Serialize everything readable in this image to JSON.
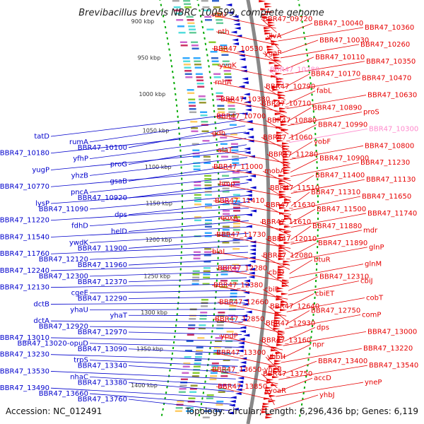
{
  "title": "Brevibacillus brevis NBRC 100599, complete genome",
  "footer": {
    "accession": "Accession: NC_012491",
    "summary": "Topology: circular; Length: 6,296,436 bp; Genes: 6,119"
  },
  "colors": {
    "forward": "#e60000",
    "reverse": "#0000cc",
    "highlight": "#ff88cc",
    "backbone": "#888888",
    "grid": "#00aa00"
  },
  "kbp_ticks": [
    "900 kbp",
    "950 kbp",
    "1000 kbp",
    "1050 kbp",
    "1100 kbp",
    "1150 kbp",
    "1200 kbp",
    "1250 kbp",
    "1300 kbp",
    "1350 kbp",
    "1400 kbp"
  ],
  "left_labels": [
    "tatD",
    "rumA",
    "BBR47_10100",
    "BBR47_10180",
    "yfhP",
    "proG",
    "yugP",
    "yhzB",
    "gsaB",
    "BBR47_10770",
    "pncA",
    "BBR47_10920",
    "lysP",
    "BBR47_11090",
    "dps",
    "BBR47_11220",
    "fdhD",
    "helD",
    "BBR47_11540",
    "ywdK",
    "BBR47_11900",
    "BBR47_11760",
    "BBR47_12120",
    "BBR47_11960",
    "BBR47_12240",
    "BBR47_12300",
    "BBR47_12370",
    "BBR47_12130",
    "cgeE",
    "BBR47_12290",
    "dctB",
    "yhaU",
    "yhaT",
    "dctA",
    "BBR47_12920",
    "BBR47_12970",
    "BBR47_13010",
    "BBR47_13020-opuD",
    "BBR47_13090",
    "BBR47_13230",
    "trpS",
    "BBR47_13340",
    "BBR47_13530",
    "nhaC",
    "BBR47_13380",
    "BBR47_13490",
    "BBR47_13660",
    "BBR47_13760"
  ],
  "right_labels": [
    "ribU",
    "BBR47_09720",
    "BBR47_10040",
    "BBR47_10360",
    "nth",
    "ilvA",
    "BBR47_10030",
    "BBR47_10260",
    "BBR47_10530",
    "ygaP",
    "BBR47_10110",
    "BBR47_10350",
    "yvqK",
    "BBR47_10280",
    "BBR47_10170",
    "BBR47_10470",
    "rnhA",
    "BBR47_10790",
    "fabL",
    "BBR47_10630",
    "BBR47_10380",
    "BBR47_10710",
    "BBR47_10890",
    "proS",
    "BBR47_10700",
    "BBR47_10880",
    "BBR47_10990",
    "BBR47_10300",
    "gdh",
    "BBR47_11060",
    "yobF",
    "BBR47_10800",
    "alaT",
    "BBR47_11280",
    "BBR47_10900",
    "BBR47_11230",
    "BBR47_11000",
    "mobA",
    "BBR47_11400",
    "BBR47_11130",
    "hmp",
    "BBR47_11510",
    "BBR47_11310",
    "BBR47_11650",
    "BBR47_11410",
    "BBR47_11630",
    "BBR47_11500",
    "BBR47_11740",
    "qoxA",
    "BBR47_11610",
    "BBR47_11880",
    "mdr",
    "BBR47_11730",
    "BBR47_12010",
    "BBR47_11890",
    "glnP",
    "blaI",
    "BBR47_12080",
    "btuR",
    "glnM",
    "BBR47_12280",
    "cbiD",
    "BBR47_12310",
    "cbiJ",
    "BBR47_12380",
    "cbiP",
    "cbiET",
    "cobT",
    "BBR47_12660",
    "BBR47_12640",
    "BBR47_12750",
    "comP",
    "BBR47_12850",
    "BBR47_12930",
    "dps",
    "BBR47_13000",
    "ypdP",
    "BBR47_13160",
    "npr",
    "BBR47_13220",
    "BBR47_13300",
    "ybbH",
    "BBR47_13400",
    "BBR47_13540",
    "BBR47_13650-yheB",
    "BBR47_13750",
    "accD",
    "yneP",
    "BBR47_13850",
    "yoaR",
    "yhbJ"
  ]
}
